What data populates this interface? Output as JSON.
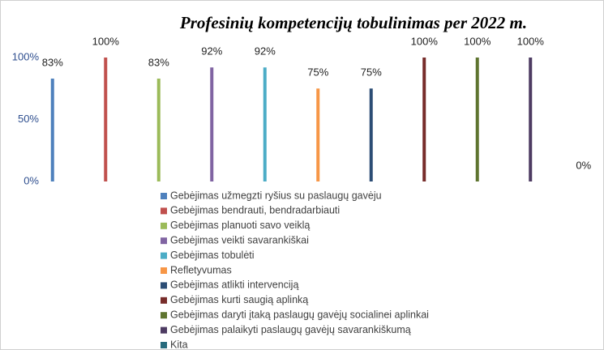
{
  "chart_data": {
    "type": "bar",
    "title": "Profesinių kompetencijų tobulinimas per 2022 m.",
    "categories": [
      "Gebėjimas užmegzti ryšius su paslaugų gavėju",
      "Gebėjimas bendrauti, bendradarbiauti",
      "Gebėjimas planuoti savo veiklą",
      "Gebėjimas veikti savarankiškai",
      "Gebėjimas tobulėti",
      "Refletyvumas",
      "Gebėjimas atlikti intervenciją",
      "Gebėjimas kurti saugią aplinką",
      "Gebėjimas daryti  įtaką  paslaugų gavėjų socialinei aplinkai",
      "Gebėjimas palaikyti paslaugų gavėjų savarankiškumą",
      "Kita"
    ],
    "values": [
      83,
      100,
      83,
      92,
      92,
      75,
      75,
      100,
      100,
      100,
      0
    ],
    "value_labels": [
      "83%",
      "100%",
      "83%",
      "92%",
      "92%",
      "75%",
      "75%",
      "100%",
      "100%",
      "100%",
      "0%"
    ],
    "colors": [
      "#4f81bd",
      "#c0504d",
      "#9bbb59",
      "#8064a2",
      "#4bacc6",
      "#f79646",
      "#2c4d75",
      "#772c2a",
      "#5f7530",
      "#4d3b62",
      "#276a7c"
    ],
    "ylim": [
      0,
      100
    ],
    "yticks": [
      {
        "value": 0,
        "label": "0%"
      },
      {
        "value": 50,
        "label": "50%"
      },
      {
        "value": 100,
        "label": "100%"
      }
    ],
    "legend": "bottom"
  }
}
